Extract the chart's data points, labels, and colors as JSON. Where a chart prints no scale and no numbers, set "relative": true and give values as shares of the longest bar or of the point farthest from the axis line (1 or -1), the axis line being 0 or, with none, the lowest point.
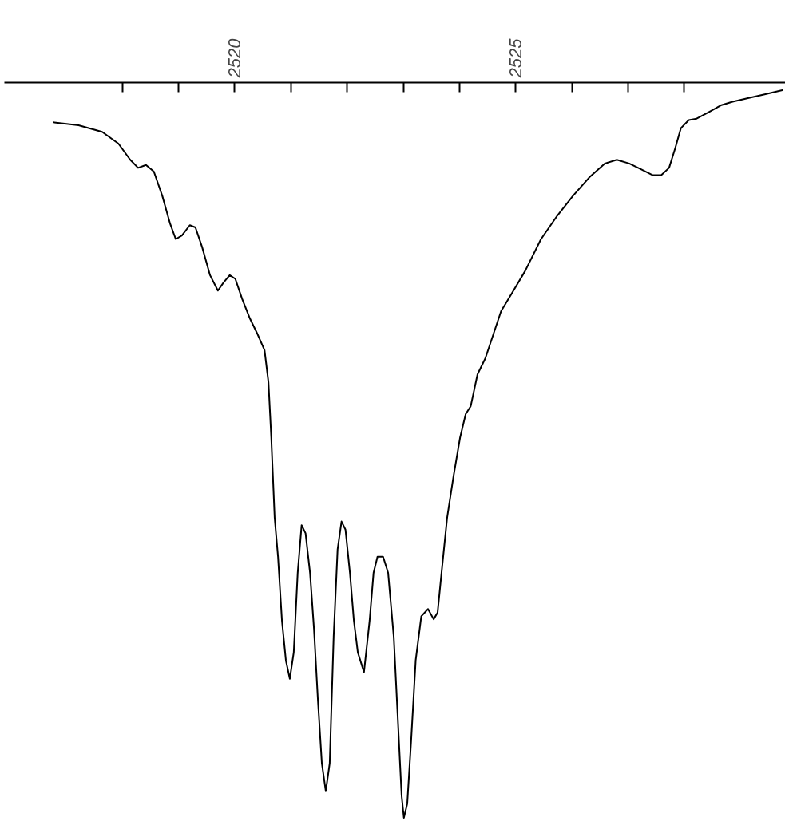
{
  "chart_data": {
    "type": "line",
    "relative": true,
    "tick_labels": "x",
    "line_style": "solid",
    "xlim": [
      2515.9,
      2529.8
    ],
    "xticks": [
      {
        "value": 2518,
        "label": null
      },
      {
        "value": 2519,
        "label": null
      },
      2520,
      {
        "value": 2521,
        "label": null
      },
      {
        "value": 2522,
        "label": null
      },
      {
        "value": 2523,
        "label": null
      },
      {
        "value": 2524,
        "label": null
      },
      2525,
      {
        "value": 2526,
        "label": null
      },
      {
        "value": 2527,
        "label": null
      },
      {
        "value": 2528,
        "label": null
      }
    ],
    "x": [
      2516.76,
      2517.22,
      2517.64,
      2517.93,
      2518.14,
      2518.28,
      2518.42,
      2518.56,
      2518.71,
      2518.85,
      2518.95,
      2519.06,
      2519.2,
      2519.3,
      2519.42,
      2519.56,
      2519.7,
      2519.8,
      2519.91,
      2520.01,
      2520.13,
      2520.27,
      2520.41,
      2520.53,
      2520.6,
      2520.65,
      2520.71,
      2520.77,
      2520.84,
      2520.91,
      2520.98,
      2521.05,
      2521.12,
      2521.19,
      2521.26,
      2521.34,
      2521.41,
      2521.48,
      2521.55,
      2521.62,
      2521.69,
      2521.76,
      2521.83,
      2521.9,
      2521.97,
      2522.05,
      2522.12,
      2522.19,
      2522.3,
      2522.4,
      2522.47,
      2522.54,
      2522.64,
      2522.73,
      2522.83,
      2522.9,
      2522.97,
      2523.01,
      2523.07,
      2523.14,
      2523.22,
      2523.32,
      2523.44,
      2523.54,
      2523.61,
      2523.68,
      2523.78,
      2523.89,
      2524.01,
      2524.11,
      2524.2,
      2524.32,
      2524.46,
      2524.6,
      2524.74,
      2524.96,
      2525.17,
      2525.45,
      2525.74,
      2526.02,
      2526.31,
      2526.59,
      2526.8,
      2527.02,
      2527.23,
      2527.44,
      2527.59,
      2527.73,
      2527.84,
      2527.94,
      2528.08,
      2528.22,
      2528.44,
      2528.65,
      2528.86,
      2529.15,
      2529.43,
      2529.76
    ],
    "series": [
      {
        "color": "#000000",
        "values": [
          -0.054,
          -0.058,
          -0.067,
          -0.083,
          -0.105,
          -0.116,
          -0.112,
          -0.121,
          -0.154,
          -0.192,
          -0.213,
          -0.208,
          -0.194,
          -0.197,
          -0.224,
          -0.262,
          -0.283,
          -0.272,
          -0.262,
          -0.267,
          -0.294,
          -0.321,
          -0.343,
          -0.364,
          -0.408,
          -0.483,
          -0.592,
          -0.645,
          -0.732,
          -0.786,
          -0.811,
          -0.775,
          -0.667,
          -0.602,
          -0.613,
          -0.667,
          -0.743,
          -0.84,
          -0.926,
          -0.964,
          -0.926,
          -0.754,
          -0.635,
          -0.597,
          -0.608,
          -0.667,
          -0.732,
          -0.775,
          -0.802,
          -0.732,
          -0.667,
          -0.645,
          -0.645,
          -0.667,
          -0.754,
          -0.862,
          -0.97,
          -1,
          -0.981,
          -0.894,
          -0.786,
          -0.726,
          -0.716,
          -0.73,
          -0.721,
          -0.667,
          -0.592,
          -0.537,
          -0.483,
          -0.451,
          -0.44,
          -0.397,
          -0.375,
          -0.343,
          -0.311,
          -0.283,
          -0.256,
          -0.213,
          -0.181,
          -0.154,
          -0.129,
          -0.11,
          -0.105,
          -0.11,
          -0.118,
          -0.126,
          -0.126,
          -0.116,
          -0.089,
          -0.062,
          -0.051,
          -0.049,
          -0.04,
          -0.031,
          -0.026,
          -0.021,
          -0.016,
          -0.01
        ]
      }
    ]
  }
}
